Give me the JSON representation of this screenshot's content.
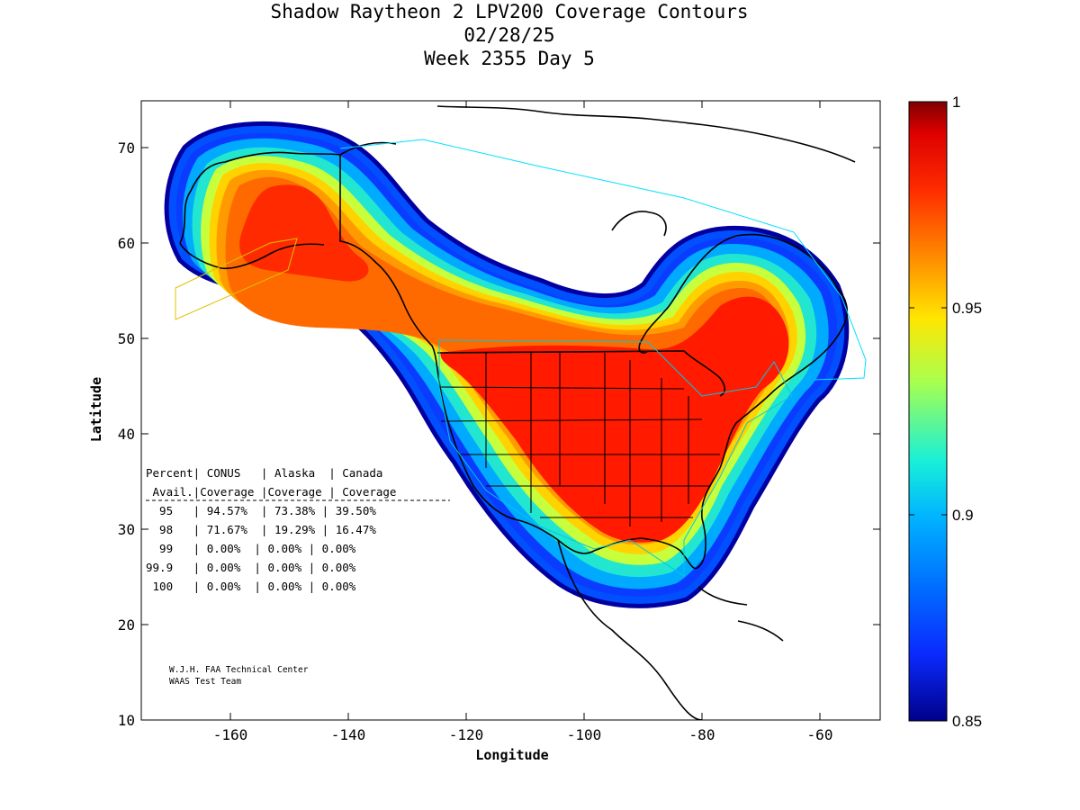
{
  "title": {
    "line1": "Shadow Raytheon 2 LPV200 Coverage Contours",
    "line2": "02/28/25",
    "line3": "Week 2355 Day 5"
  },
  "axes": {
    "xlabel": "Longitude",
    "ylabel": "Latitude",
    "xticks": [
      "-160",
      "-140",
      "-120",
      "-100",
      "-80",
      "-60"
    ],
    "yticks": [
      "10",
      "20",
      "30",
      "40",
      "50",
      "60",
      "70"
    ]
  },
  "colorbar": {
    "ticks": [
      "0.85",
      "0.9",
      "0.95",
      "1"
    ],
    "colors": [
      "#00008a",
      "#0a2bff",
      "#00b4ff",
      "#18f0d8",
      "#aaff4c",
      "#ffe600",
      "#ff8a00",
      "#ff2a00",
      "#dd0000",
      "#7f0000"
    ]
  },
  "table": {
    "header1": "Percent| CONUS   | Alaska  | Canada",
    "header2": " Avail.|Coverage |Coverage | Coverage",
    "rows": [
      "  95   | 94.57%  | 73.38% | 39.50%",
      "  98   | 71.67%  | 19.29% | 16.47%",
      "  99   | 0.00%  | 0.00% | 0.00%",
      "99.9   | 0.00%  | 0.00% | 0.00%",
      " 100   | 0.00%  | 0.00% | 0.00%"
    ]
  },
  "credit": {
    "line1": "W.J.H. FAA Technical Center",
    "line2": "WAAS Test Team"
  }
}
